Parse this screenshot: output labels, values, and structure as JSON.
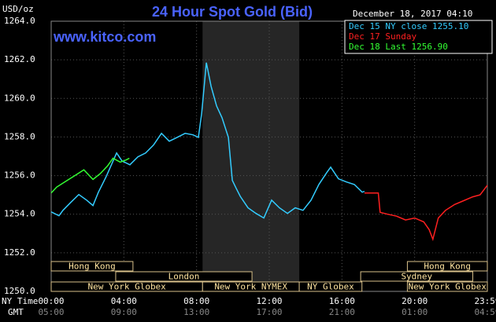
{
  "chart_data": {
    "type": "line",
    "title": "24 Hour Spot Gold (Bid)",
    "site": "www.kitco.com",
    "timestamp": "December 18, 2017 04:10",
    "y_unit": "USD/oz",
    "x_label": "NY Time",
    "x2_label": "GMT",
    "xlim": [
      0,
      24
    ],
    "ylim": [
      1250,
      1264
    ],
    "yticks": [
      {
        "value": 1250,
        "label": "1250.0"
      },
      {
        "value": 1252,
        "label": "1252.0"
      },
      {
        "value": 1254,
        "label": "1254.0"
      },
      {
        "value": 1256,
        "label": "1256.0"
      },
      {
        "value": 1258,
        "label": "1258.0"
      },
      {
        "value": 1260,
        "label": "1260.0"
      },
      {
        "value": 1262,
        "label": "1262.0"
      },
      {
        "value": 1264,
        "label": "1264.0"
      }
    ],
    "xticks": [
      {
        "value": 0,
        "label": "00:00"
      },
      {
        "value": 4,
        "label": "04:00"
      },
      {
        "value": 8,
        "label": "08:00"
      },
      {
        "value": 12,
        "label": "12:00"
      },
      {
        "value": 16,
        "label": "16:00"
      },
      {
        "value": 20,
        "label": "20:00"
      },
      {
        "value": 24,
        "label": "23:59"
      }
    ],
    "x2ticks": [
      {
        "value": 0,
        "label": "05:00"
      },
      {
        "value": 4,
        "label": "09:00"
      },
      {
        "value": 8,
        "label": "13:00"
      },
      {
        "value": 12,
        "label": "17:00"
      },
      {
        "value": 16,
        "label": "21:00"
      },
      {
        "value": 20,
        "label": "01:00"
      },
      {
        "value": 24,
        "label": "04:59"
      }
    ],
    "grid": true,
    "shaded_range": [
      8.33,
      13.65
    ],
    "sessions": [
      {
        "label": "Hong Kong",
        "start": 0,
        "end": 4.5
      },
      {
        "label": "Hong Kong",
        "start": 19.6,
        "end": 24
      },
      {
        "label": "London",
        "start": 3.55,
        "end": 11.05
      },
      {
        "label": "Sydney",
        "start": 17.03,
        "end": 23.2
      },
      {
        "label": "New York Globex",
        "start": 0,
        "end": 8.33
      },
      {
        "label": "New York NYMEX",
        "start": 8.33,
        "end": 13.65
      },
      {
        "label": "NY Globex",
        "start": 13.65,
        "end": 17.1
      },
      {
        "label": "New York Globex",
        "start": 19.6,
        "end": 24
      }
    ],
    "series": [
      {
        "name": "Dec 15 NY close 1255.10",
        "color": "#33ccff",
        "x": [
          0,
          0.43,
          0.65,
          1.08,
          1.52,
          1.95,
          2.3,
          2.6,
          3.03,
          3.6,
          3.9,
          4.33,
          4.77,
          5.2,
          5.63,
          6.07,
          6.5,
          6.93,
          7.37,
          7.8,
          8.1,
          8.28,
          8.54,
          8.8,
          9.1,
          9.4,
          9.75,
          9.97,
          10.18,
          10.4,
          10.83,
          11.27,
          11.7,
          12.13,
          12.56,
          13,
          13.43,
          13.86,
          14.3,
          14.73,
          15.16,
          15.38,
          15.81,
          16.25,
          16.68,
          17.11,
          17.24
        ],
        "values": [
          1254.12,
          1253.92,
          1254.2,
          1254.61,
          1255.02,
          1254.73,
          1254.45,
          1255.14,
          1255.95,
          1257.17,
          1256.76,
          1256.56,
          1256.97,
          1257.17,
          1257.58,
          1258.19,
          1257.78,
          1257.98,
          1258.19,
          1258.11,
          1257.98,
          1259.2,
          1261.85,
          1260.63,
          1259.61,
          1259.0,
          1257.98,
          1255.75,
          1255.34,
          1254.93,
          1254.33,
          1254.04,
          1253.8,
          1254.73,
          1254.33,
          1254.04,
          1254.33,
          1254.2,
          1254.73,
          1255.54,
          1256.15,
          1256.44,
          1255.83,
          1255.67,
          1255.54,
          1255.14,
          1255.18
        ]
      },
      {
        "name": "Dec 17 Sunday",
        "color": "#ff2020",
        "x": [
          17.24,
          18.0,
          18.1,
          18.5,
          19,
          19.5,
          20,
          20.5,
          20.8,
          21.0,
          21.3,
          21.7,
          22.2,
          22.7,
          23.2,
          23.6,
          24.0
        ],
        "values": [
          1255.1,
          1255.1,
          1254.1,
          1254.0,
          1253.9,
          1253.7,
          1253.8,
          1253.6,
          1253.2,
          1252.7,
          1253.8,
          1254.2,
          1254.5,
          1254.7,
          1254.9,
          1255.0,
          1255.5
        ]
      },
      {
        "name": "Dec 18 Last 1256.90",
        "color": "#33ff33",
        "x": [
          0,
          0.3,
          0.8,
          1.3,
          1.8,
          2.3,
          2.7,
          3.1,
          3.4,
          3.8,
          4.1,
          4.3
        ],
        "values": [
          1255.1,
          1255.4,
          1255.7,
          1256.0,
          1256.3,
          1255.8,
          1256.1,
          1256.5,
          1256.9,
          1256.7,
          1256.8,
          1256.9
        ]
      }
    ]
  }
}
